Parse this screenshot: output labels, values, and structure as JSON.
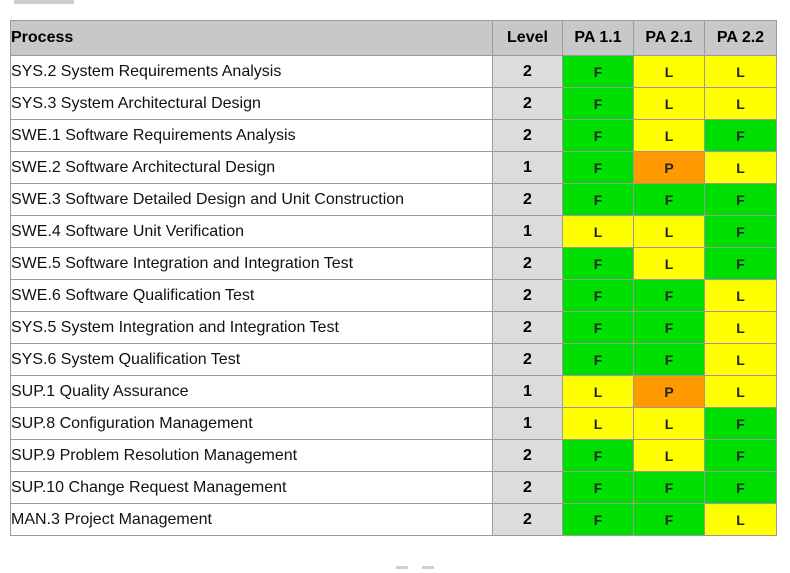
{
  "table": {
    "headers": {
      "process": "Process",
      "level": "Level",
      "pa": [
        "PA 1.1",
        "PA 2.1",
        "PA 2.2"
      ]
    },
    "rows": [
      {
        "process": "SYS.2 System Requirements Analysis",
        "level": "2",
        "ratings": [
          "F",
          "L",
          "L"
        ]
      },
      {
        "process": "SYS.3 System Architectural Design",
        "level": "2",
        "ratings": [
          "F",
          "L",
          "L"
        ]
      },
      {
        "process": "SWE.1 Software Requirements Analysis",
        "level": "2",
        "ratings": [
          "F",
          "L",
          "F"
        ]
      },
      {
        "process": "SWE.2 Software Architectural Design",
        "level": "1",
        "ratings": [
          "F",
          "P",
          "L"
        ]
      },
      {
        "process": "SWE.3 Software Detailed Design and Unit Construction",
        "level": "2",
        "ratings": [
          "F",
          "F",
          "F"
        ]
      },
      {
        "process": "SWE.4 Software Unit Verification",
        "level": "1",
        "ratings": [
          "L",
          "L",
          "F"
        ]
      },
      {
        "process": "SWE.5 Software Integration and Integration Test",
        "level": "2",
        "ratings": [
          "F",
          "L",
          "F"
        ]
      },
      {
        "process": "SWE.6 Software Qualification Test",
        "level": "2",
        "ratings": [
          "F",
          "F",
          "L"
        ]
      },
      {
        "process": "SYS.5 System Integration and Integration Test",
        "level": "2",
        "ratings": [
          "F",
          "F",
          "L"
        ]
      },
      {
        "process": "SYS.6 System Qualification Test",
        "level": "2",
        "ratings": [
          "F",
          "F",
          "L"
        ]
      },
      {
        "process": "SUP.1 Quality Assurance",
        "level": "1",
        "ratings": [
          "L",
          "P",
          "L"
        ]
      },
      {
        "process": "SUP.8 Configuration Management",
        "level": "1",
        "ratings": [
          "L",
          "L",
          "F"
        ]
      },
      {
        "process": "SUP.9 Problem Resolution Management",
        "level": "2",
        "ratings": [
          "F",
          "L",
          "F"
        ]
      },
      {
        "process": "SUP.10 Change Request Management",
        "level": "2",
        "ratings": [
          "F",
          "F",
          "F"
        ]
      },
      {
        "process": "MAN.3 Project Management",
        "level": "2",
        "ratings": [
          "F",
          "F",
          "L"
        ]
      }
    ]
  },
  "colors": {
    "F": "#00e000",
    "L": "#ffff00",
    "P": "#ff9900",
    "header_bg": "#c8c8c8",
    "level_bg": "#dcdcdc"
  }
}
